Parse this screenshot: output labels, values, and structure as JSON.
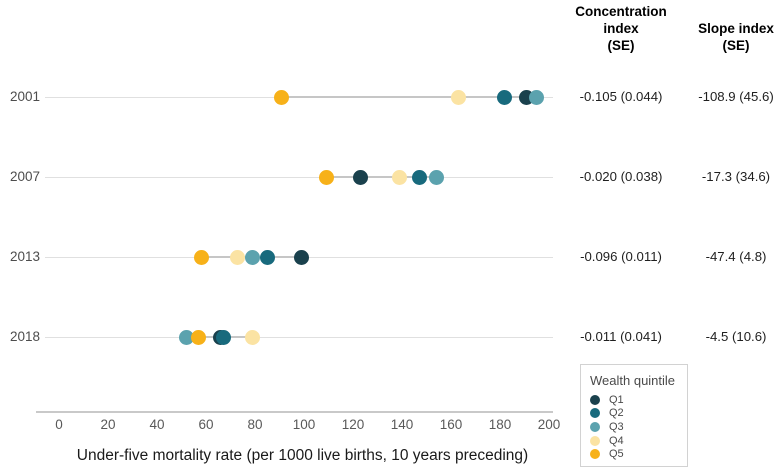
{
  "columns": {
    "concentration_lines": [
      "Concentration",
      "index",
      "(SE)"
    ],
    "slope_lines": [
      "Slope index",
      "(SE)"
    ]
  },
  "chart_data": {
    "type": "scatter",
    "variant": "dumbbell-dot-plot",
    "xlabel": "Under-five mortality rate (per 1000 live births, 10 years preceding)",
    "xlim": [
      0,
      200
    ],
    "x_ticks": [
      0,
      20,
      40,
      60,
      80,
      100,
      120,
      140,
      160,
      180,
      200
    ],
    "grid": "row-lines-only",
    "years": [
      "2001",
      "2007",
      "2013",
      "2018"
    ],
    "series": [
      {
        "name": "Q1",
        "color": "#1a414d",
        "values": [
          191,
          123,
          99,
          66
        ]
      },
      {
        "name": "Q2",
        "color": "#186a7d",
        "values": [
          182,
          147,
          85,
          67
        ]
      },
      {
        "name": "Q3",
        "color": "#5ba2ae",
        "values": [
          195,
          154,
          79,
          52
        ]
      },
      {
        "name": "Q4",
        "color": "#fbe3a3",
        "values": [
          163,
          139,
          73,
          79
        ]
      },
      {
        "name": "Q5",
        "color": "#f7b119",
        "values": [
          91,
          109,
          58,
          57
        ]
      }
    ],
    "rows": [
      {
        "year": "2001",
        "concentration_index": "-0.105 (0.044)",
        "slope_index": "-108.9 (45.6)"
      },
      {
        "year": "2007",
        "concentration_index": "-0.020 (0.038)",
        "slope_index": "-17.3 (34.6)"
      },
      {
        "year": "2013",
        "concentration_index": "-0.096 (0.011)",
        "slope_index": "-47.4 (4.8)"
      },
      {
        "year": "2018",
        "concentration_index": "-0.011 (0.041)",
        "slope_index": "-4.5 (10.6)"
      }
    ],
    "legend": {
      "title": "Wealth quintile",
      "entries": [
        "Q1",
        "Q2",
        "Q3",
        "Q4",
        "Q5"
      ],
      "position": "bottom-right"
    }
  },
  "colors": {
    "row_gridline": "#e0e0e0",
    "connector": "#c6c6c6",
    "axis_line": "#c9c9c9",
    "tick_text": "#595959",
    "year_text": "#4d4d4d"
  }
}
